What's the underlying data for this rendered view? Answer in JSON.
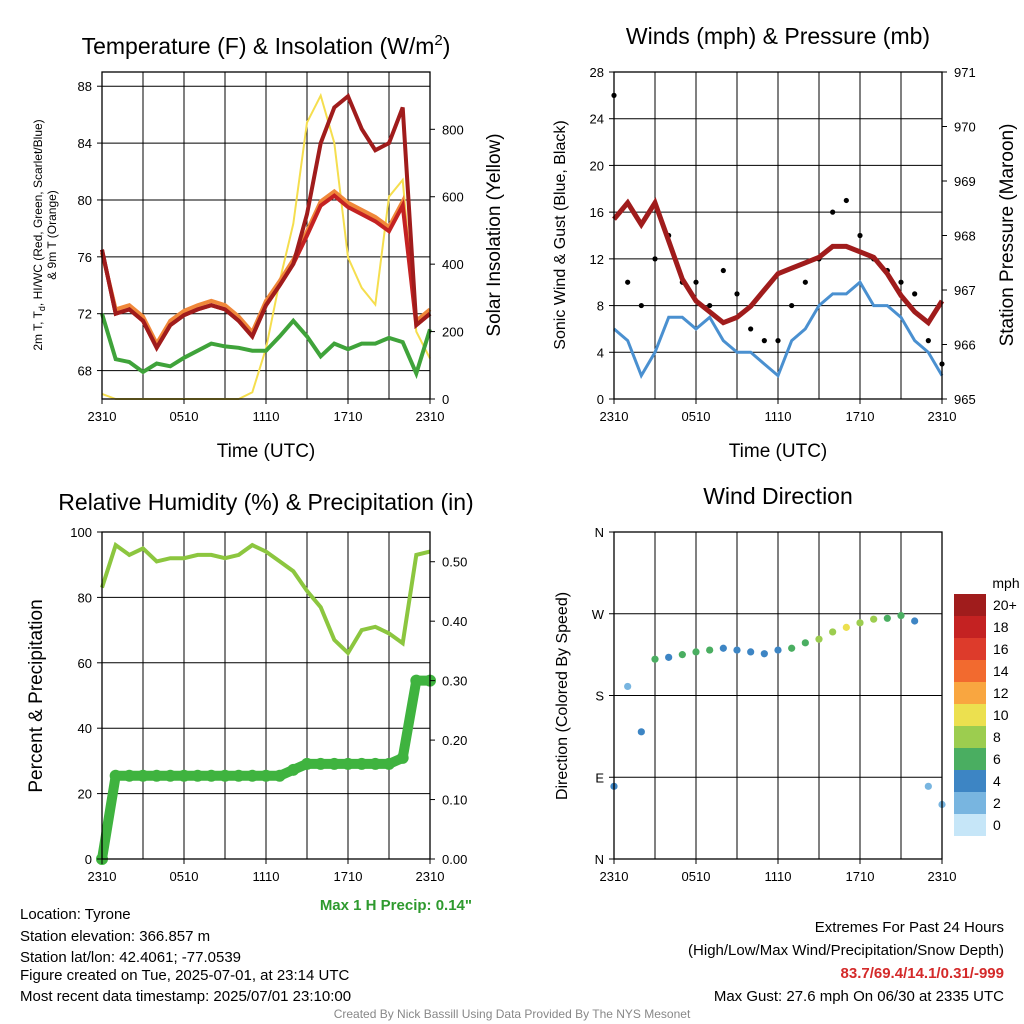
{
  "panels": {
    "temperature": {
      "title": "Temperature (F) & Insolation (W/m",
      "title_sup": "2",
      "title_end": ")",
      "xlabel": "Time (UTC)",
      "ylabel_left_line1": "2m T, T",
      "ylabel_left_sub": "d",
      "ylabel_left_line1b": ", HI/WC (Red, Green, Scarlet/Blue)",
      "ylabel_left_line2": "& 9m T (Orange)",
      "ylabel_right": "Solar Insolation (Yellow)",
      "xticks": [
        "2310",
        "0510",
        "1110",
        "1710",
        "2310"
      ],
      "yticks_left": [
        "68",
        "72",
        "76",
        "80",
        "84",
        "88"
      ],
      "yticks_right": [
        "0",
        "200",
        "400",
        "600",
        "800"
      ]
    },
    "winds": {
      "title": "Winds (mph) & Pressure (mb)",
      "xlabel": "Time (UTC)",
      "ylabel_left": "Sonic Wind & Gust (Blue, Black)",
      "ylabel_right": "Station Pressure (Maroon)",
      "xticks": [
        "2310",
        "0510",
        "1110",
        "1710",
        "2310"
      ],
      "yticks_left": [
        "0",
        "4",
        "8",
        "12",
        "16",
        "20",
        "24",
        "28"
      ],
      "yticks_right": [
        "965",
        "966",
        "967",
        "968",
        "969",
        "970",
        "971"
      ]
    },
    "humidity": {
      "title": "Relative Humidity (%) & Precipitation (in)",
      "ylabel_left": "Percent & Precipitation",
      "xticks": [
        "2310",
        "0510",
        "1110",
        "1710",
        "2310"
      ],
      "yticks_left": [
        "0",
        "20",
        "40",
        "60",
        "80",
        "100"
      ],
      "yticks_right": [
        "0.00",
        "0.10",
        "0.20",
        "0.30",
        "0.40",
        "0.50"
      ],
      "max_precip": "Max 1 H Precip: 0.14\""
    },
    "direction": {
      "title": "Wind Direction",
      "ylabel_left": "Direction (Colored By Speed)",
      "xticks": [
        "2310",
        "0510",
        "1110",
        "1710",
        "2310"
      ],
      "yticks_left": [
        "N",
        "E",
        "S",
        "W",
        "N"
      ],
      "legend_title": "mph",
      "legend_labels": [
        "20+",
        "18",
        "16",
        "14",
        "12",
        "10",
        "8",
        "6",
        "4",
        "2",
        "0"
      ],
      "legend_colors": [
        "#a01c1c",
        "#c42222",
        "#dd3b2b",
        "#f26a2f",
        "#f9a640",
        "#ece04f",
        "#9ccd4f",
        "#4aae61",
        "#3d85c4",
        "#78b5e0",
        "#c6e6f8"
      ]
    }
  },
  "footer": {
    "location": "Location: Tyrone",
    "elevation": "Station elevation: 366.857 m",
    "latlon": "Station lat/lon: 42.4061; -77.0539",
    "created": "Figure created on Tue, 2025-07-01, at 23:14 UTC",
    "recent": "Most recent data timestamp: 2025/07/01 23:10:00",
    "extremes_title": "Extremes For Past 24 Hours",
    "extremes_sub": "(High/Low/Max Wind/Precipitation/Snow Depth)",
    "extremes_values": "83.7/69.4/14.1/0.31/-999",
    "max_gust": "Max Gust: 27.6 mph On 06/30 at 2335 UTC",
    "credit": "Created By Nick Bassill Using Data Provided By The NYS Mesonet"
  },
  "colors": {
    "temp": "#c42222",
    "nine_m": "#f0883a",
    "dewpoint": "#3fa33a",
    "insolation": "#f5de4e",
    "wind": "#4a90d0",
    "gust": "#000000",
    "pressure": "#a01c1c",
    "rh": "#8cc63f",
    "precip": "#3fb33f",
    "max_precip_text": "#2e9a2e",
    "extremes_text": "#d42a2a",
    "credit_text": "#888888"
  },
  "chart_data": [
    {
      "type": "line",
      "title": "Temperature (F) & Insolation (W/m2)",
      "xlabel": "Time (UTC)",
      "ylabel": "2m T, Td, HI/WC (Red, Green, Scarlet/Blue) & 9m T (Orange)",
      "y2label": "Solar Insolation (Yellow)",
      "x": [
        0,
        1,
        2,
        3,
        4,
        5,
        6,
        7,
        8,
        9,
        10,
        11,
        12,
        13,
        14,
        15,
        16,
        17,
        18,
        19,
        20,
        21,
        22,
        23,
        24
      ],
      "x_tick_labels": [
        "2310",
        "0510",
        "1110",
        "1710",
        "2310"
      ],
      "ylim": [
        66,
        89
      ],
      "y2lim": [
        0,
        970
      ],
      "series": [
        {
          "name": "2m T",
          "axis": "left",
          "values": [
            76.5,
            72.0,
            72.3,
            71.5,
            69.6,
            71.2,
            71.9,
            72.3,
            72.6,
            72.3,
            71.5,
            70.4,
            72.6,
            74.0,
            75.5,
            77.5,
            79.6,
            80.3,
            79.5,
            79.0,
            78.5,
            77.8,
            79.6,
            71.2,
            72.0
          ]
        },
        {
          "name": "9m T",
          "axis": "left",
          "values": [
            76.3,
            72.3,
            72.6,
            71.8,
            69.9,
            71.5,
            72.2,
            72.6,
            72.9,
            72.6,
            71.8,
            70.7,
            72.9,
            74.3,
            75.8,
            77.8,
            79.9,
            80.6,
            79.8,
            79.3,
            78.8,
            78.1,
            79.9,
            71.5,
            72.3
          ]
        },
        {
          "name": "HI/WC",
          "axis": "left",
          "values": [
            76.5,
            72.0,
            72.3,
            71.5,
            69.6,
            71.2,
            71.9,
            72.3,
            72.6,
            72.3,
            71.5,
            70.4,
            72.6,
            74.0,
            75.5,
            79.0,
            84.0,
            86.5,
            87.3,
            85.0,
            83.5,
            84.0,
            86.5,
            71.2,
            72.0
          ]
        },
        {
          "name": "Td",
          "axis": "left",
          "values": [
            72.0,
            68.8,
            68.6,
            67.9,
            68.5,
            68.3,
            68.9,
            69.4,
            69.9,
            69.7,
            69.6,
            69.4,
            69.4,
            70.4,
            71.5,
            70.4,
            69.0,
            69.9,
            69.5,
            69.9,
            69.9,
            70.3,
            70.0,
            67.8,
            70.9
          ]
        },
        {
          "name": "Solar Insolation",
          "axis": "right",
          "values": [
            15,
            0,
            0,
            0,
            0,
            0,
            0,
            0,
            0,
            0,
            0,
            20,
            150,
            350,
            520,
            820,
            900,
            760,
            420,
            330,
            280,
            600,
            650,
            200,
            120
          ]
        }
      ]
    },
    {
      "type": "line",
      "title": "Winds (mph) & Pressure (mb)",
      "xlabel": "Time (UTC)",
      "ylabel": "Sonic Wind & Gust (Blue, Black)",
      "y2label": "Station Pressure (Maroon)",
      "x": [
        0,
        1,
        2,
        3,
        4,
        5,
        6,
        7,
        8,
        9,
        10,
        11,
        12,
        13,
        14,
        15,
        16,
        17,
        18,
        19,
        20,
        21,
        22,
        23,
        24
      ],
      "x_tick_labels": [
        "2310",
        "0510",
        "1110",
        "1710",
        "2310"
      ],
      "ylim": [
        0,
        28
      ],
      "y2lim": [
        965,
        971
      ],
      "series": [
        {
          "name": "Sonic Wind",
          "axis": "left",
          "values": [
            6,
            5,
            2,
            4,
            7,
            7,
            6,
            7,
            5,
            4,
            4,
            3,
            2,
            5,
            6,
            8,
            9,
            9,
            10,
            8,
            8,
            7,
            5,
            4,
            2
          ]
        },
        {
          "name": "Gust",
          "axis": "left",
          "values": [
            26,
            10,
            8,
            12,
            14,
            10,
            10,
            8,
            11,
            9,
            6,
            5,
            5,
            8,
            10,
            12,
            16,
            17,
            14,
            12,
            11,
            10,
            9,
            5,
            3
          ]
        },
        {
          "name": "Station Pressure",
          "axis": "right",
          "values": [
            968.3,
            968.6,
            968.2,
            968.6,
            967.9,
            967.2,
            966.8,
            966.6,
            966.4,
            966.5,
            966.7,
            967.0,
            967.3,
            967.4,
            967.5,
            967.6,
            967.8,
            967.8,
            967.7,
            967.6,
            967.3,
            966.9,
            966.6,
            966.4,
            966.8
          ]
        }
      ]
    },
    {
      "type": "line",
      "title": "Relative Humidity (%) & Precipitation (in)",
      "ylabel": "Percent & Precipitation",
      "x": [
        0,
        1,
        2,
        3,
        4,
        5,
        6,
        7,
        8,
        9,
        10,
        11,
        12,
        13,
        14,
        15,
        16,
        17,
        18,
        19,
        20,
        21,
        22,
        23,
        24
      ],
      "x_tick_labels": [
        "2310",
        "0510",
        "1110",
        "1710",
        "2310"
      ],
      "ylim": [
        0,
        100
      ],
      "y2lim": [
        0,
        0.55
      ],
      "series": [
        {
          "name": "Relative Humidity",
          "axis": "left",
          "values": [
            83,
            96,
            93,
            95,
            91,
            92,
            92,
            93,
            93,
            92,
            93,
            96,
            94,
            91,
            88,
            82,
            77,
            67,
            63,
            70,
            71,
            69,
            66,
            93,
            94
          ]
        },
        {
          "name": "Precipitation",
          "axis": "right",
          "values": [
            0.0,
            0.14,
            0.14,
            0.14,
            0.14,
            0.14,
            0.14,
            0.14,
            0.14,
            0.14,
            0.14,
            0.14,
            0.14,
            0.14,
            0.15,
            0.16,
            0.16,
            0.16,
            0.16,
            0.16,
            0.16,
            0.16,
            0.17,
            0.3,
            0.3
          ]
        }
      ]
    },
    {
      "type": "scatter",
      "title": "Wind Direction",
      "ylabel": "Direction (Colored By Speed)",
      "x": [
        0,
        1,
        2,
        3,
        4,
        5,
        6,
        7,
        8,
        9,
        10,
        11,
        12,
        13,
        14,
        15,
        16,
        17,
        18,
        19,
        20,
        21,
        22,
        23,
        24
      ],
      "x_tick_labels": [
        "2310",
        "0510",
        "1110",
        "1710",
        "2310"
      ],
      "y_tick_labels": [
        "N",
        "E",
        "S",
        "W",
        "N"
      ],
      "ylim": [
        0,
        360
      ],
      "series": [
        {
          "name": "Direction",
          "values": [
            80,
            190,
            140,
            220,
            222,
            225,
            228,
            230,
            232,
            230,
            228,
            226,
            230,
            232,
            238,
            242,
            250,
            255,
            260,
            264,
            265,
            268,
            262,
            80,
            60
          ]
        },
        {
          "name": "Speed",
          "values": [
            4,
            2,
            3,
            5,
            4,
            5,
            6,
            5,
            4,
            3,
            3,
            3,
            3,
            5,
            6,
            7,
            8,
            9,
            8,
            7,
            6,
            5,
            4,
            2,
            1
          ]
        }
      ]
    }
  ]
}
